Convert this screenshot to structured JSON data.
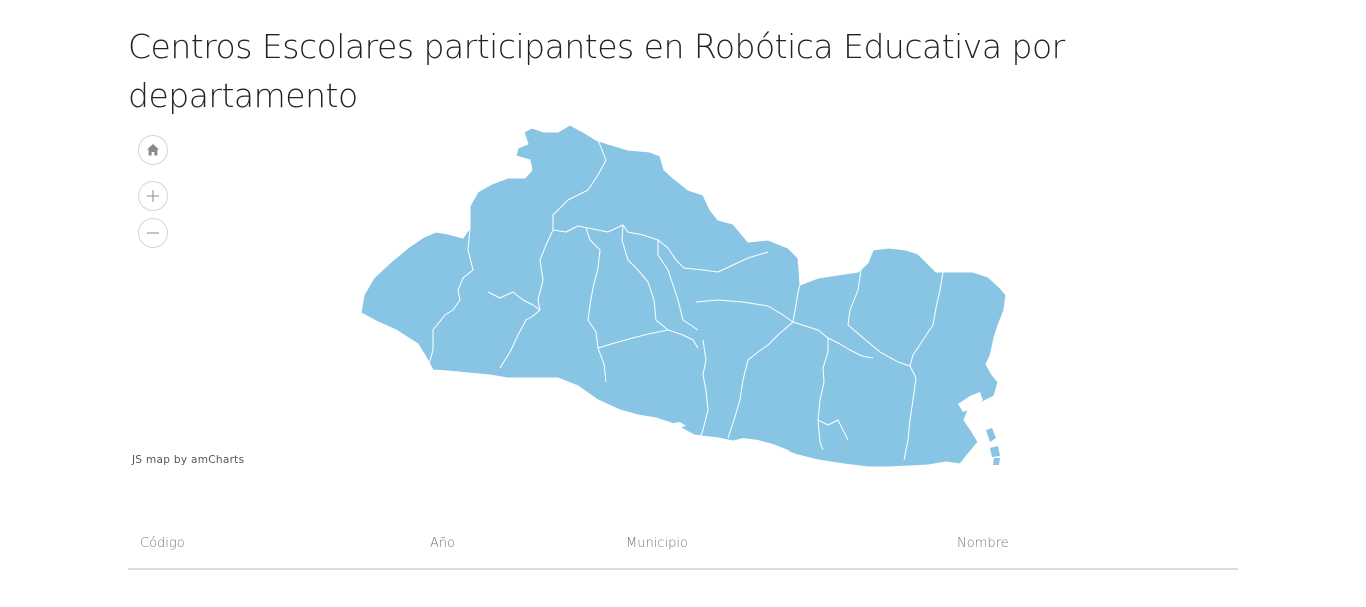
{
  "page": {
    "title": "Centros Escolares participantes en Robótica Educativa por departamento"
  },
  "map": {
    "fill_color": "#88c5e4",
    "border_color": "#ffffff",
    "controls": {
      "home_icon": "home-icon",
      "zoom_in_icon": "plus-icon",
      "zoom_out_icon": "minus-icon"
    },
    "credit": "JS map by amCharts"
  },
  "table": {
    "columns": [
      "Código",
      "Año",
      "Municipio",
      "Nombre"
    ]
  }
}
